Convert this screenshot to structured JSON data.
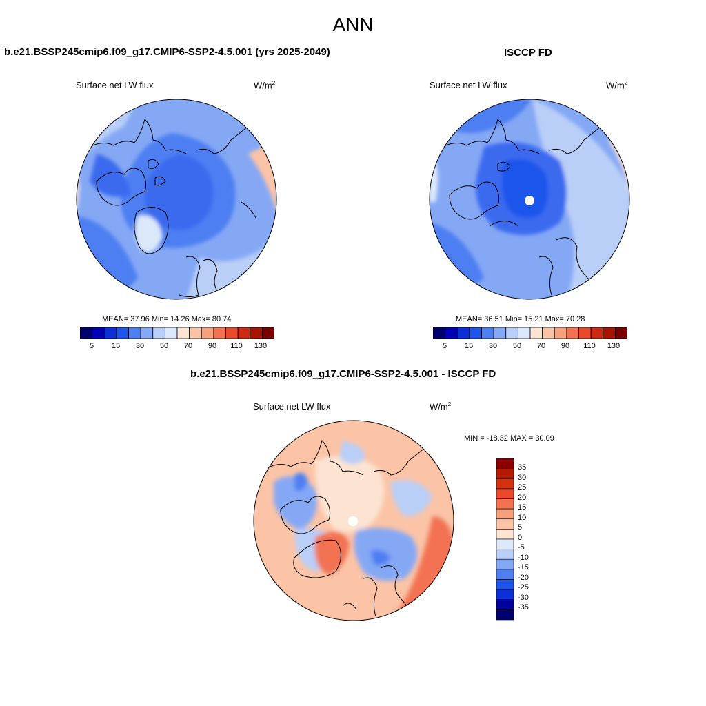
{
  "title": "ANN",
  "colors": {
    "abs_scale": [
      "#00006e",
      "#0000b4",
      "#0a2fd6",
      "#1f55eb",
      "#4d7ff2",
      "#85a8f5",
      "#b9cff7",
      "#dbe8fa",
      "#fde4d2",
      "#fbc4a7",
      "#f7a07c",
      "#f27252",
      "#e94a2b",
      "#cc2a12",
      "#a81400",
      "#7a0000"
    ],
    "diff_scale": [
      "#00006e",
      "#00009c",
      "#0a2fd6",
      "#1f55eb",
      "#4d7ff2",
      "#85a8f5",
      "#b9cff7",
      "#dbe8fa",
      "#fde4d2",
      "#fbc4a7",
      "#f7a07c",
      "#f27252",
      "#e94a2b",
      "#d6300e",
      "#b31a00",
      "#8c0000"
    ]
  },
  "panels": {
    "model": {
      "title": "b.e21.BSSP245cmip6.f09_g17.CMIP6-SSP2-4.5.001 (yrs 2025-2049)",
      "variable": "Surface net LW flux",
      "units": "W/m",
      "units_sup": "2",
      "stats": "MEAN=  37.96  Min=  14.26  Max=  80.74"
    },
    "obs": {
      "title": "ISCCP FD",
      "variable": "Surface net LW flux",
      "units": "W/m",
      "units_sup": "2",
      "stats": "MEAN=  36.51  Min=  15.21  Max=  70.28"
    },
    "diff": {
      "title": "b.e21.BSSP245cmip6.f09_g17.CMIP6-SSP2-4.5.001 - ISCCP FD",
      "variable": "Surface net LW flux",
      "units": "W/m",
      "units_sup": "2",
      "stats": "MIN = -18.32 MAX =  30.09"
    }
  },
  "colorbar_abs_ticks": [
    "5",
    "15",
    "30",
    "50",
    "70",
    "90",
    "110",
    "130"
  ],
  "colorbar_diff_ticks": [
    "35",
    "30",
    "25",
    "20",
    "15",
    "10",
    "5",
    "0",
    "-5",
    "-10",
    "-15",
    "-20",
    "-25",
    "-30",
    "-35"
  ]
}
